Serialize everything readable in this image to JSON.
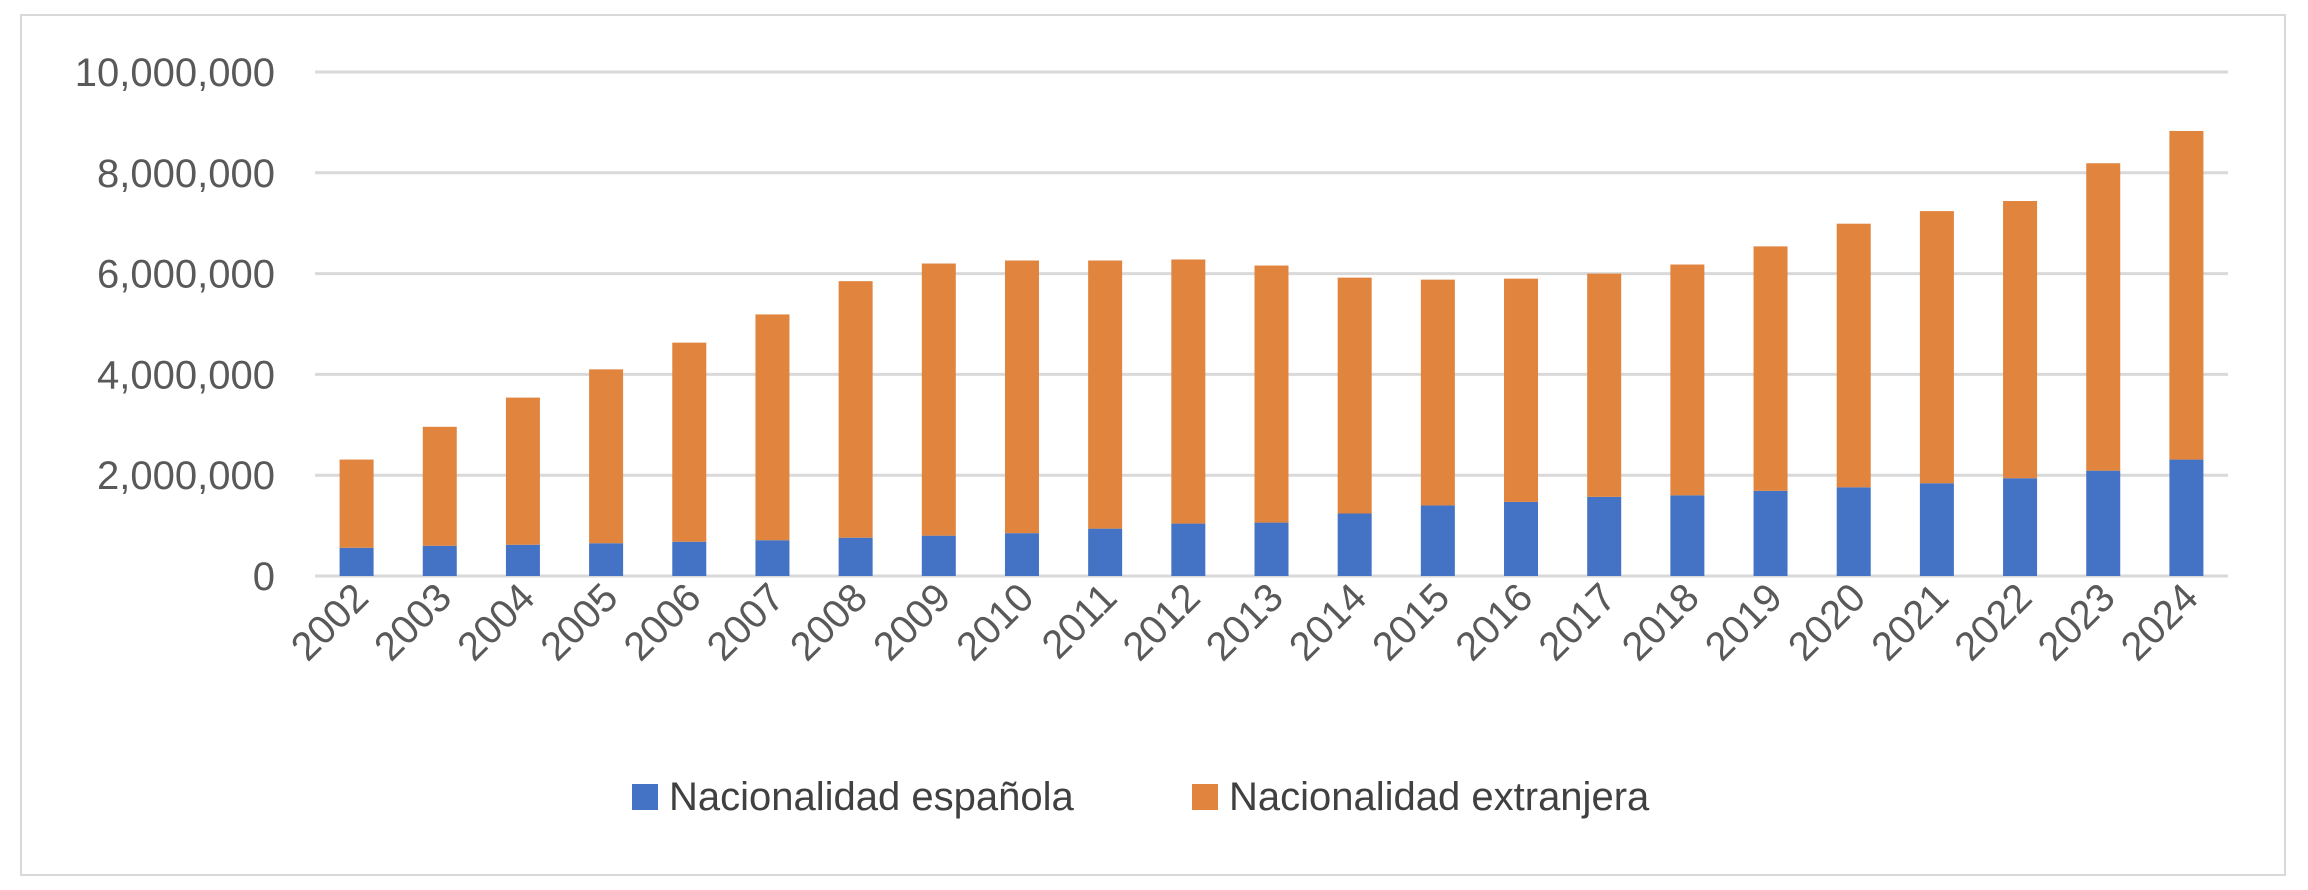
{
  "chart_data": {
    "type": "bar",
    "stacked": true,
    "categories": [
      "2002",
      "2003",
      "2004",
      "2005",
      "2006",
      "2007",
      "2008",
      "2009",
      "2010",
      "2011",
      "2012",
      "2013",
      "2014",
      "2015",
      "2016",
      "2017",
      "2018",
      "2019",
      "2020",
      "2021",
      "2022",
      "2023",
      "2024"
    ],
    "series": [
      {
        "name": "Nacionalidad española",
        "color": "#4472c4",
        "values": [
          560000,
          600000,
          620000,
          650000,
          680000,
          710000,
          760000,
          800000,
          850000,
          940000,
          1040000,
          1060000,
          1240000,
          1400000,
          1470000,
          1570000,
          1600000,
          1690000,
          1760000,
          1840000,
          1940000,
          2090000,
          2310000
        ]
      },
      {
        "name": "Nacionalidad extranjera",
        "color": "#e0843e",
        "values": [
          1750000,
          2360000,
          2920000,
          3450000,
          3950000,
          4480000,
          5090000,
          5400000,
          5410000,
          5320000,
          5240000,
          5100000,
          4680000,
          4480000,
          4430000,
          4430000,
          4580000,
          4850000,
          5230000,
          5400000,
          5500000,
          6100000,
          6520000
        ]
      }
    ],
    "yticks": [
      "0",
      "2,000,000",
      "4,000,000",
      "6,000,000",
      "8,000,000",
      "10,000,000"
    ],
    "ylim": [
      0,
      10000000
    ],
    "grid": true,
    "legend_position": "bottom-center"
  }
}
